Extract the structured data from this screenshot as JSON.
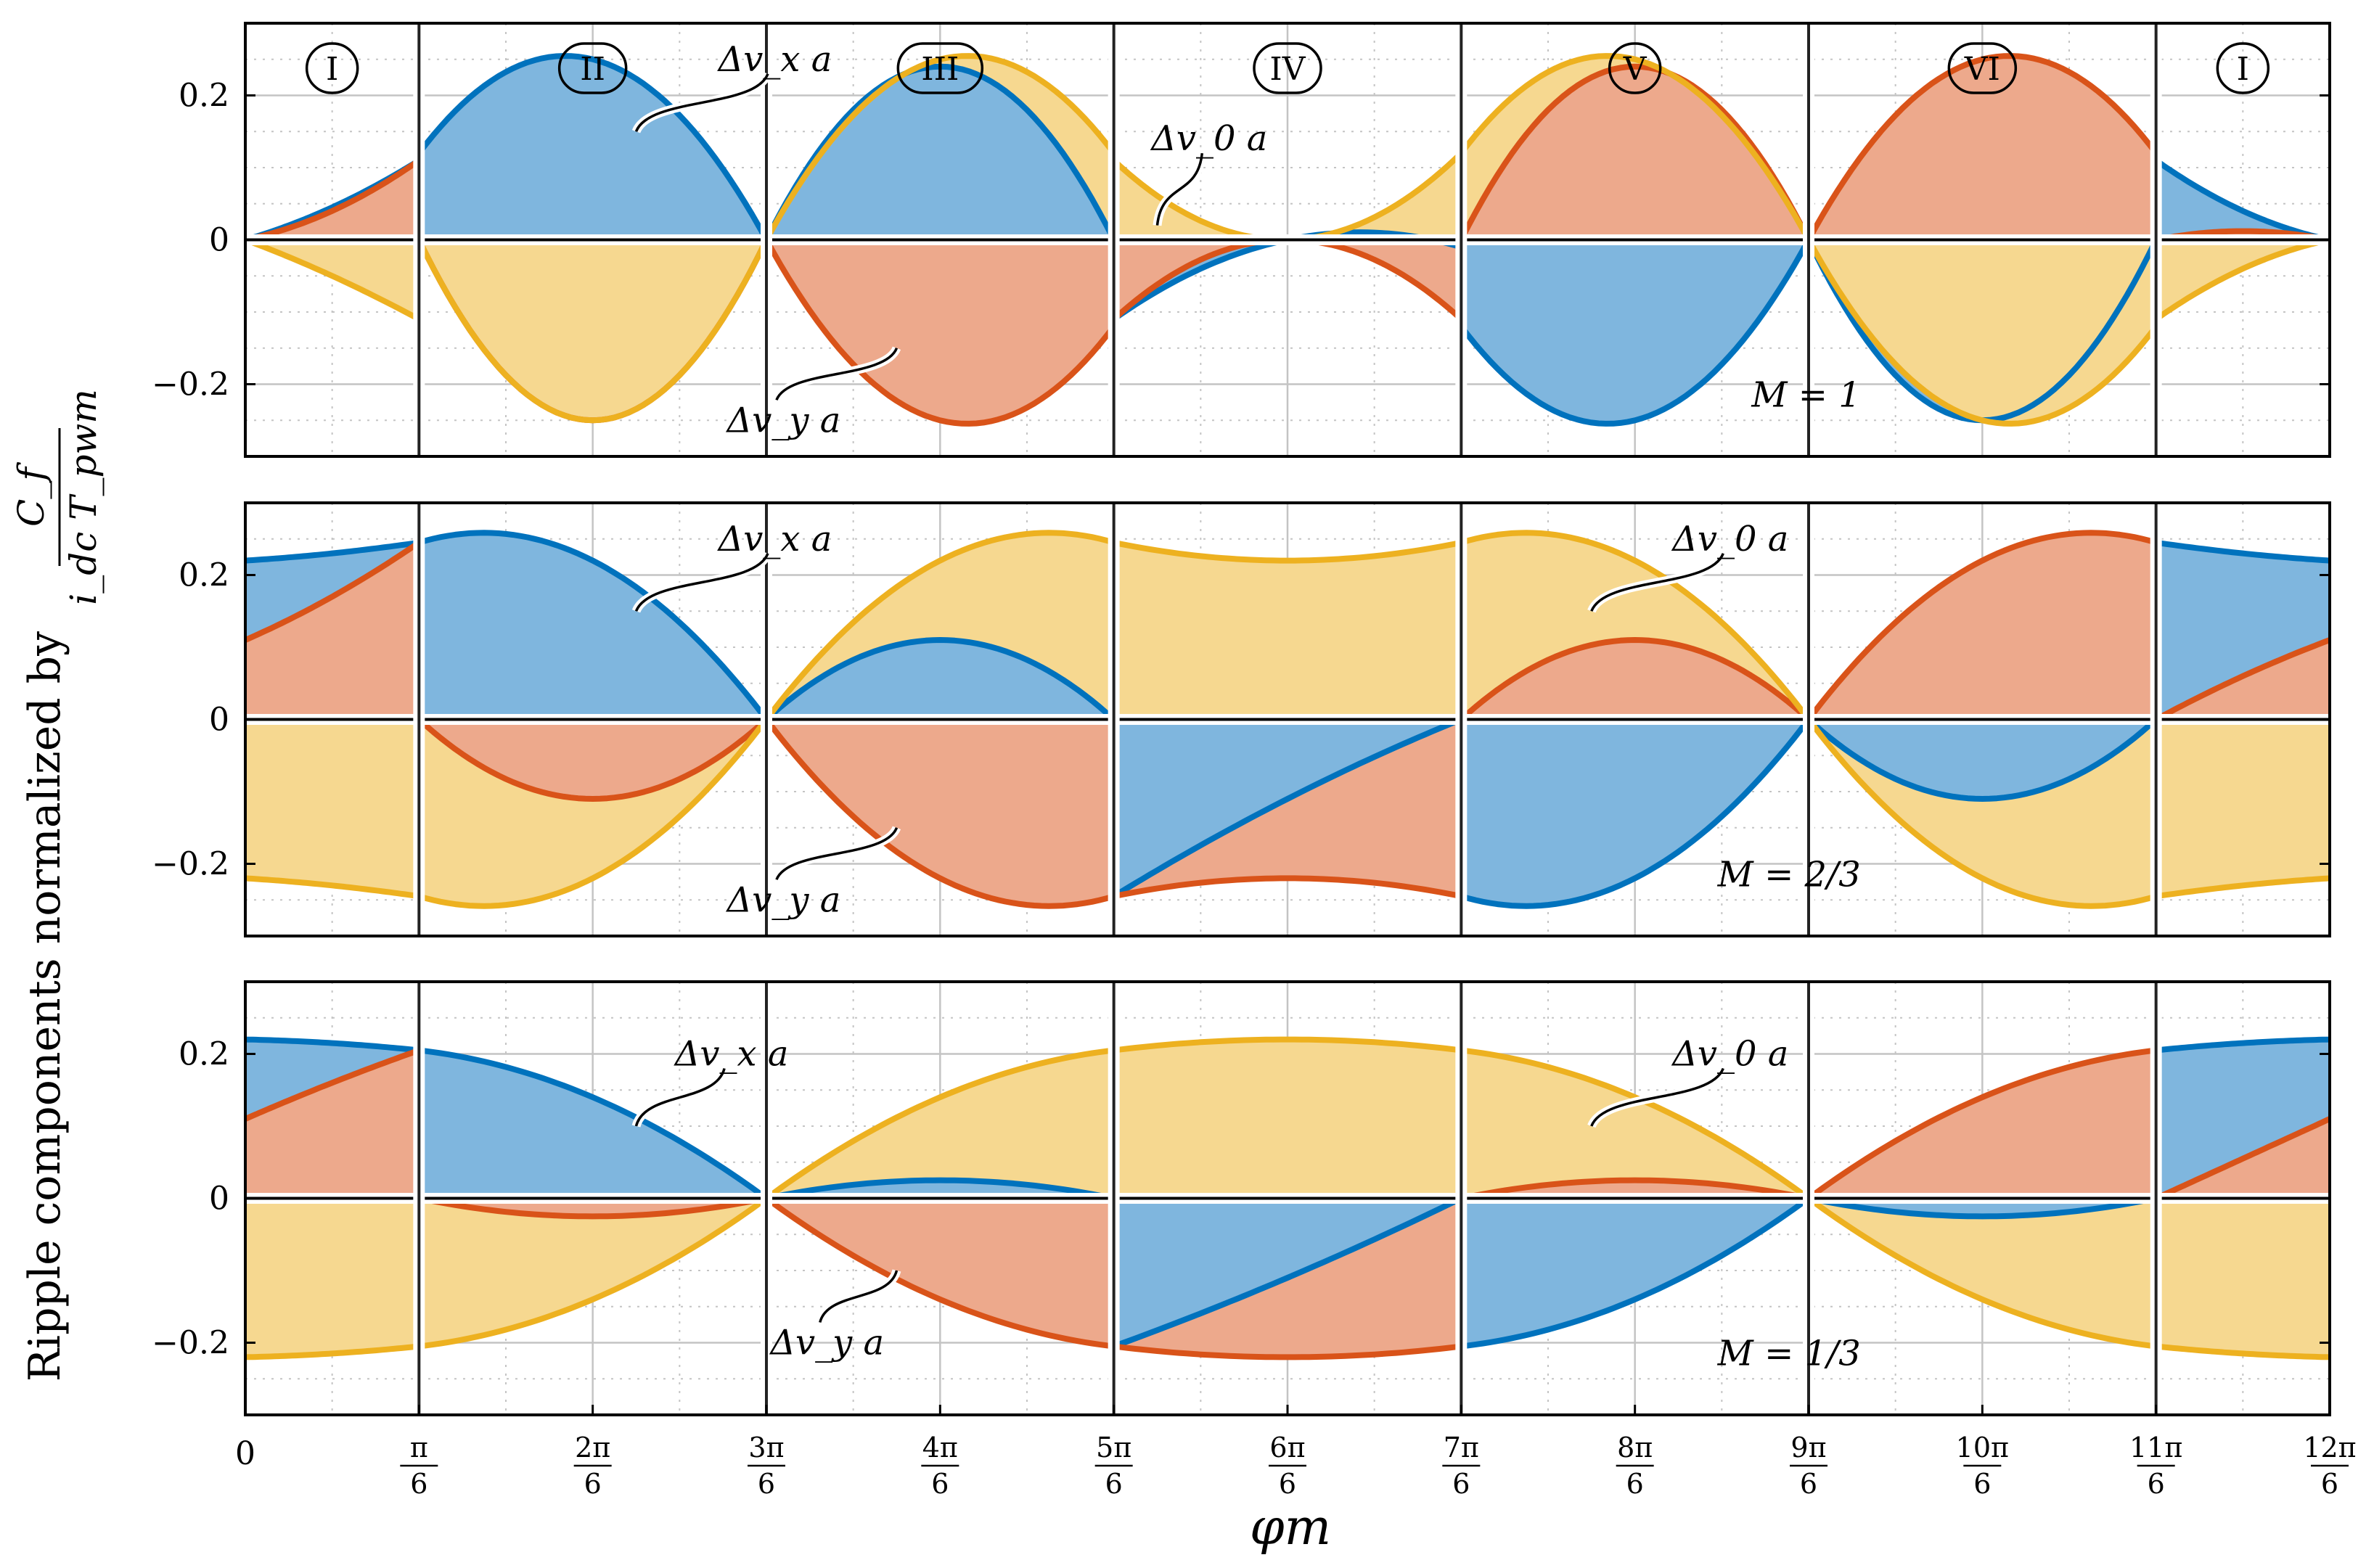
{
  "figure": {
    "ylabel": "Ripple components normalized by",
    "ylabel_fraction": {
      "numerator": "C_f",
      "denominator": "i_dc T_pwm"
    },
    "xlabel": "φm",
    "colors": {
      "xa": "#0072BD",
      "ya": "#D95319",
      "0a": "#EDB120",
      "xa_fill": "#7FB6DE",
      "ya_fill": "#EDA98C",
      "0a_fill": "#F6D890"
    }
  },
  "chart_data": {
    "type": "area",
    "x_domain": [
      0,
      12
    ],
    "x_unit": "pi/6",
    "x_ticks": [
      {
        "num": "0",
        "den": ""
      },
      {
        "num": "π",
        "den": "6"
      },
      {
        "num": "2π",
        "den": "6"
      },
      {
        "num": "3π",
        "den": "6"
      },
      {
        "num": "4π",
        "den": "6"
      },
      {
        "num": "5π",
        "den": "6"
      },
      {
        "num": "6π",
        "den": "6"
      },
      {
        "num": "7π",
        "den": "6"
      },
      {
        "num": "8π",
        "den": "6"
      },
      {
        "num": "9π",
        "den": "6"
      },
      {
        "num": "10π",
        "den": "6"
      },
      {
        "num": "11π",
        "den": "6"
      },
      {
        "num": "12π",
        "den": "6"
      }
    ],
    "sector_boundaries": [
      1,
      3,
      5,
      7,
      9,
      11
    ],
    "sectors": [
      {
        "label": "I",
        "center": 0.5
      },
      {
        "label": "II",
        "center": 2
      },
      {
        "label": "III",
        "center": 4
      },
      {
        "label": "IV",
        "center": 6
      },
      {
        "label": "V",
        "center": 8
      },
      {
        "label": "VI",
        "center": 10
      },
      {
        "label": "I",
        "center": 11.5
      }
    ],
    "ylim": [
      -0.3,
      0.3
    ],
    "y_ticks": [
      0.2,
      0,
      -0.2
    ],
    "y_tick_labels": [
      "0.2",
      "0",
      "−0.2"
    ],
    "series_order": [
      "xa",
      "ya",
      "0a"
    ],
    "series_names": {
      "xa": "Δv_x,a",
      "ya": "Δv_y,a",
      "0a": "Δv_0,a"
    },
    "panels": [
      {
        "M_label": "M = 1",
        "annotations": [
          {
            "text": "Δv_x a",
            "series": "xa",
            "point": [
              2.25,
              0.15
            ],
            "label": [
              3.05,
              0.25
            ]
          },
          {
            "text": "Δv_0 a",
            "series": "0a",
            "point": [
              5.25,
              0.02
            ],
            "label": [
              5.55,
              0.14
            ]
          },
          {
            "text": "Δv_y a",
            "series": "ya",
            "point": [
              3.75,
              -0.15
            ],
            "label": [
              3.1,
              -0.25
            ]
          }
        ],
        "sectors": [
          {
            "x": [
              0,
              0.5,
              1
            ],
            "xa": [
              0,
              0.045,
              0.11
            ],
            "ya": [
              0,
              0.04,
              0.11
            ],
            "0a": [
              0,
              -0.05,
              -0.11
            ]
          },
          {
            "x": [
              1,
              2,
              3
            ],
            "xa": [
              0.12,
              0.25,
              0
            ],
            "ya": [
              0,
              -0.25,
              0
            ],
            "0a": [
              0,
              -0.25,
              0
            ]
          },
          {
            "x": [
              3,
              4,
              5
            ],
            "xa": [
              0,
              0.24,
              0
            ],
            "ya": [
              0,
              -0.25,
              -0.12
            ],
            "0a": [
              0,
              0.25,
              0.12
            ]
          },
          {
            "x": [
              5,
              6,
              7
            ],
            "xa": [
              -0.11,
              0,
              -0.01
            ],
            "ya": [
              -0.11,
              0,
              -0.11
            ],
            "0a": [
              0.11,
              0,
              0.12
            ]
          },
          {
            "x": [
              7,
              8,
              9
            ],
            "xa": [
              -0.12,
              -0.25,
              0
            ],
            "ya": [
              0,
              0.24,
              0
            ],
            "0a": [
              0.12,
              0.25,
              0
            ]
          },
          {
            "x": [
              9,
              10,
              11
            ],
            "xa": [
              0,
              -0.25,
              0
            ],
            "ya": [
              0,
              0.25,
              0.12
            ],
            "0a": [
              0,
              -0.25,
              -0.12
            ]
          },
          {
            "x": [
              11,
              11.5,
              12
            ],
            "xa": [
              0.11,
              0.04,
              0
            ],
            "ya": [
              0,
              0.012,
              0
            ],
            "0a": [
              -0.11,
              -0.04,
              0
            ]
          }
        ]
      },
      {
        "M_label": "M = 2/3",
        "annotations": [
          {
            "text": "Δv_x a",
            "series": "xa",
            "point": [
              2.25,
              0.15
            ],
            "label": [
              3.05,
              0.25
            ]
          },
          {
            "text": "Δv_0 a",
            "series": "0a",
            "point": [
              7.75,
              0.15
            ],
            "label": [
              8.55,
              0.25
            ]
          },
          {
            "text": "Δv_y a",
            "series": "ya",
            "point": [
              3.75,
              -0.15
            ],
            "label": [
              3.1,
              -0.25
            ]
          }
        ],
        "sectors": [
          {
            "x": [
              0,
              0.5,
              1
            ],
            "xa": [
              0.22,
              0.23,
              0.245
            ],
            "ya": [
              0.11,
              0.17,
              0.245
            ],
            "0a": [
              -0.22,
              -0.23,
              -0.245
            ]
          },
          {
            "x": [
              1,
              2,
              3
            ],
            "xa": [
              0.245,
              0.22,
              0
            ],
            "ya": [
              0,
              -0.11,
              0
            ],
            "0a": [
              -0.245,
              -0.22,
              0
            ]
          },
          {
            "x": [
              3,
              4,
              5
            ],
            "xa": [
              0,
              0.11,
              0
            ],
            "ya": [
              0,
              -0.22,
              -0.245
            ],
            "0a": [
              0,
              0.22,
              0.245
            ]
          },
          {
            "x": [
              5,
              6,
              7
            ],
            "xa": [
              -0.245,
              -0.11,
              0
            ],
            "ya": [
              -0.245,
              -0.22,
              -0.245
            ],
            "0a": [
              0.245,
              0.22,
              0.245
            ]
          },
          {
            "x": [
              7,
              8,
              9
            ],
            "xa": [
              -0.245,
              -0.22,
              0
            ],
            "ya": [
              0,
              0.11,
              0
            ],
            "0a": [
              0.245,
              0.22,
              0
            ]
          },
          {
            "x": [
              9,
              10,
              11
            ],
            "xa": [
              0,
              -0.11,
              0
            ],
            "ya": [
              0,
              0.22,
              0.245
            ],
            "0a": [
              0,
              -0.22,
              -0.245
            ]
          },
          {
            "x": [
              11,
              11.5,
              12
            ],
            "xa": [
              0.245,
              0.23,
              0.22
            ],
            "ya": [
              0,
              0.06,
              0.11
            ],
            "0a": [
              -0.245,
              -0.23,
              -0.22
            ]
          }
        ]
      },
      {
        "M_label": "M = 1/3",
        "annotations": [
          {
            "text": "Δv_x a",
            "series": "xa",
            "point": [
              2.25,
              0.1
            ],
            "label": [
              2.8,
              0.2
            ]
          },
          {
            "text": "Δv_0 a",
            "series": "0a",
            "point": [
              7.75,
              0.1
            ],
            "label": [
              8.55,
              0.2
            ]
          },
          {
            "text": "Δv_y a",
            "series": "ya",
            "point": [
              3.75,
              -0.1
            ],
            "label": [
              3.35,
              -0.2
            ]
          }
        ],
        "sectors": [
          {
            "x": [
              0,
              0.5,
              1
            ],
            "xa": [
              0.22,
              0.215,
              0.205
            ],
            "ya": [
              0.11,
              0.16,
              0.205
            ],
            "0a": [
              -0.22,
              -0.215,
              -0.205
            ]
          },
          {
            "x": [
              1,
              2,
              3
            ],
            "xa": [
              0.205,
              0.14,
              0
            ],
            "ya": [
              0,
              -0.025,
              0
            ],
            "0a": [
              -0.205,
              -0.14,
              0
            ]
          },
          {
            "x": [
              3,
              4,
              5
            ],
            "xa": [
              0,
              0.025,
              0
            ],
            "ya": [
              0,
              -0.14,
              -0.205
            ],
            "0a": [
              0,
              0.14,
              0.205
            ]
          },
          {
            "x": [
              5,
              6,
              7
            ],
            "xa": [
              -0.205,
              -0.11,
              0
            ],
            "ya": [
              -0.205,
              -0.22,
              -0.205
            ],
            "0a": [
              0.205,
              0.22,
              0.205
            ]
          },
          {
            "x": [
              7,
              8,
              9
            ],
            "xa": [
              -0.205,
              -0.14,
              0
            ],
            "ya": [
              0,
              0.025,
              0
            ],
            "0a": [
              0.205,
              0.14,
              0
            ]
          },
          {
            "x": [
              9,
              10,
              11
            ],
            "xa": [
              0,
              -0.025,
              0
            ],
            "ya": [
              0,
              0.14,
              0.205
            ],
            "0a": [
              0,
              -0.14,
              -0.205
            ]
          },
          {
            "x": [
              11,
              11.5,
              12
            ],
            "xa": [
              0.205,
              0.215,
              0.22
            ],
            "ya": [
              0,
              0.055,
              0.11
            ],
            "0a": [
              -0.205,
              -0.215,
              -0.22
            ]
          }
        ]
      }
    ]
  }
}
